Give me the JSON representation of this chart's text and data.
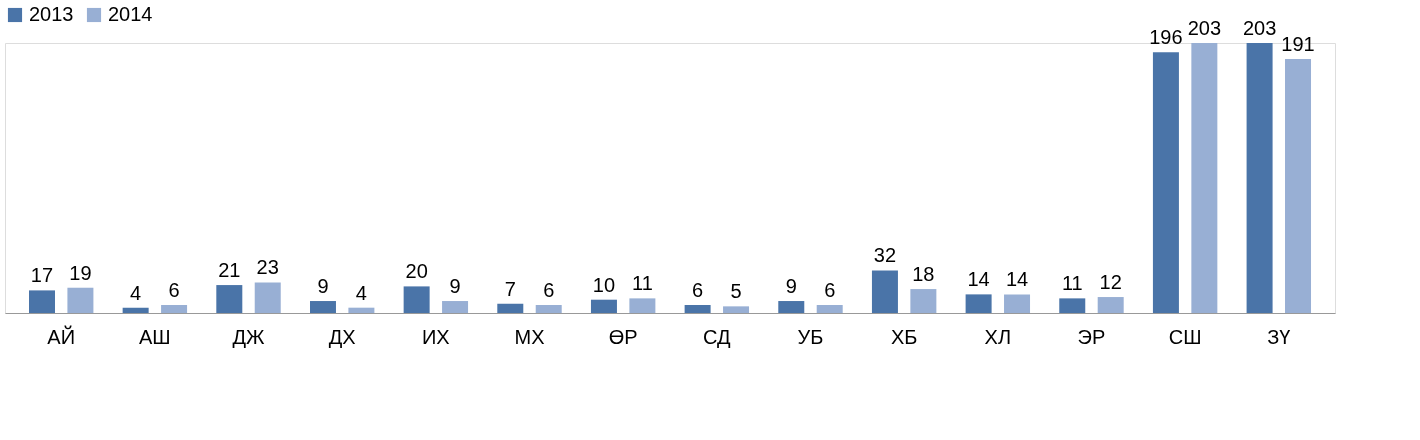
{
  "chart_data": {
    "type": "bar",
    "categories": [
      "АЙ",
      "АШ",
      "ДЖ",
      "ДХ",
      "ИХ",
      "МХ",
      "ӨР",
      "СД",
      "УБ",
      "ХБ",
      "ХЛ",
      "ЭР",
      "СШ",
      "ЗҮ"
    ],
    "series": [
      {
        "name": "2013",
        "color": "#4a74a8",
        "values": [
          17,
          4,
          21,
          9,
          20,
          7,
          10,
          6,
          9,
          32,
          14,
          11,
          196,
          203
        ]
      },
      {
        "name": "2014",
        "color": "#98afd4",
        "values": [
          19,
          6,
          23,
          4,
          9,
          6,
          11,
          5,
          6,
          18,
          14,
          12,
          203,
          191
        ]
      }
    ],
    "data_labels": true,
    "legend": "top",
    "grid": false
  }
}
